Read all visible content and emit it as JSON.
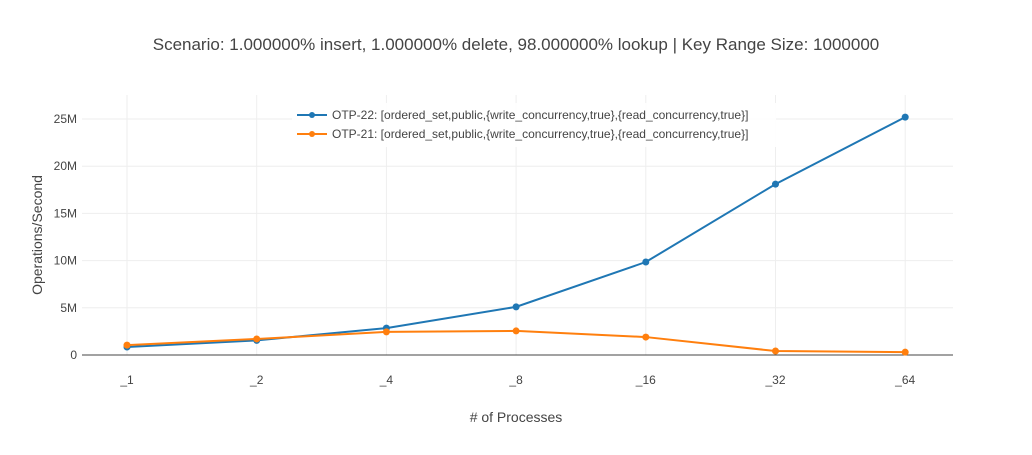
{
  "chart_data": {
    "type": "line",
    "title": "Scenario:  1.000000% insert,  1.000000% delete,  98.000000% lookup | Key Range Size: 1000000",
    "xlabel": "# of Processes",
    "ylabel": "Operations/Second",
    "categories": [
      "_1",
      "_2",
      "_4",
      "_8",
      "_16",
      "_32",
      "_64"
    ],
    "y_ticks": [
      0,
      5000000,
      10000000,
      15000000,
      20000000,
      25000000
    ],
    "y_tick_labels": [
      "0",
      "5M",
      "10M",
      "15M",
      "20M",
      "25M"
    ],
    "ylim": [
      0,
      26000000
    ],
    "grid": true,
    "legend_position": "top-inside",
    "series": [
      {
        "name": "OTP-22: [ordered_set,public,{write_concurrency,true},{read_concurrency,true}]",
        "color": "#1f77b4",
        "values": [
          850000,
          1550000,
          2850000,
          5100000,
          9850000,
          18100000,
          25200000
        ]
      },
      {
        "name": "OTP-21: [ordered_set,public,{write_concurrency,true},{read_concurrency,true}]",
        "color": "#ff7f0e",
        "values": [
          1050000,
          1700000,
          2450000,
          2550000,
          1900000,
          420000,
          300000
        ]
      }
    ]
  }
}
